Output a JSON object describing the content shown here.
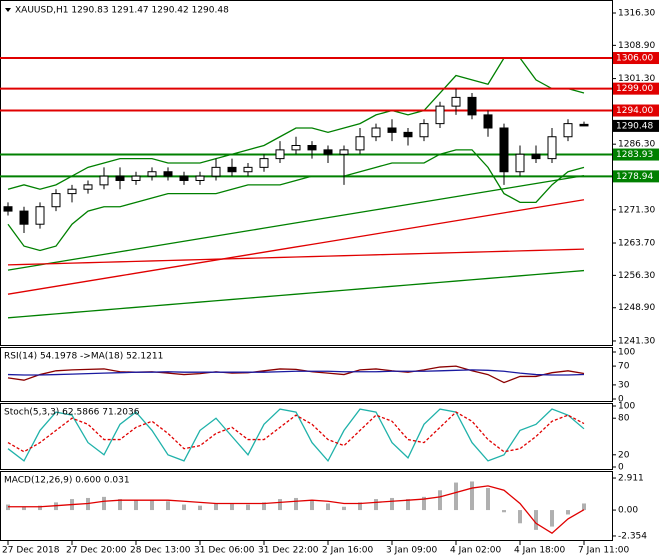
{
  "chart_data": [
    {
      "type": "candlestick",
      "title": "XAUUSD,H1  1290.83 1291.47 1290.42 1290.48",
      "categories": [
        "27 Dec 2018",
        null,
        null,
        null,
        "27 Dec 20:00",
        null,
        null,
        null,
        "28 Dec 13:00",
        null,
        null,
        null,
        "31 Dec 06:00",
        null,
        null,
        null,
        "31 Dec 22:00",
        null,
        null,
        null,
        "2 Jan 16:00",
        null,
        null,
        null,
        "3 Jan 09:00",
        null,
        null,
        null,
        "4 Jan 02:00",
        null,
        null,
        null,
        "4 Jan 18:00",
        null,
        null,
        null,
        "7 Jan 11:00"
      ],
      "open": [
        1272,
        1271,
        1268,
        1272,
        1275,
        1276,
        1277,
        1279,
        1278,
        1279,
        1280,
        1279,
        1278,
        1279,
        1281,
        1280,
        1281,
        1283,
        1285,
        1286,
        1285,
        1284,
        1285,
        1288,
        1290,
        1289,
        1288,
        1291,
        1295,
        1297,
        1293,
        1290,
        1280,
        1284,
        1283,
        1288,
        1290.83
      ],
      "high": [
        1273,
        1272,
        1273,
        1276,
        1277,
        1278,
        1281,
        1281,
        1280,
        1281,
        1281,
        1280,
        1280,
        1283,
        1283,
        1282,
        1284,
        1287,
        1288,
        1287,
        1286,
        1286,
        1290,
        1291,
        1292,
        1290,
        1292,
        1296,
        1299,
        1298,
        1294,
        1291,
        1286,
        1286,
        1290,
        1292,
        1291.47
      ],
      "low": [
        1270,
        1266,
        1267,
        1271,
        1273,
        1275,
        1276,
        1276,
        1277,
        1278,
        1278,
        1277,
        1277,
        1278,
        1279,
        1279,
        1280,
        1282,
        1284,
        1283,
        1282,
        1277,
        1284,
        1287,
        1287,
        1286,
        1287,
        1290,
        1293,
        1292,
        1288,
        1277,
        1279,
        1282,
        1282,
        1287,
        1290.42
      ],
      "close": [
        1271,
        1268,
        1272,
        1275,
        1276,
        1277,
        1279,
        1278,
        1279,
        1280,
        1279,
        1278,
        1279,
        1281,
        1280,
        1281,
        1283,
        1285,
        1286,
        1285,
        1284,
        1285,
        1288,
        1290,
        1289,
        1288,
        1291,
        1295,
        1297,
        1293,
        1290,
        1280,
        1284,
        1283,
        1288,
        1291,
        1290.48
      ],
      "series": [
        {
          "color": "#008000",
          "values": [
            1276,
            1277,
            1276,
            1277,
            1279,
            1281,
            1282,
            1283,
            1283,
            1283,
            1282,
            1282,
            1282,
            1283,
            1284,
            1285,
            1286,
            1288,
            1290,
            1290,
            1289,
            1290,
            1291,
            1293,
            1294,
            1293,
            1294,
            1298,
            1302,
            1301,
            1300,
            1306,
            1306,
            1301,
            1299,
            1299,
            1298
          ]
        },
        {
          "color": "#008000",
          "values": [
            1268,
            1263,
            1262,
            1263,
            1268,
            1271,
            1272,
            1272,
            1273,
            1274,
            1275,
            1275,
            1275,
            1275,
            1276,
            1277,
            1277,
            1277,
            1278,
            1279,
            1279,
            1279,
            1280,
            1281,
            1282,
            1282,
            1282,
            1284,
            1285,
            1285,
            1281,
            1275,
            1273,
            1273,
            1277,
            1280,
            1281
          ]
        },
        {
          "color": "#008000",
          "values": [
            1257.5,
            1258.1,
            1258.7,
            1259.3,
            1259.9,
            1260.5,
            1261.1,
            1261.7,
            1262.3,
            1262.9,
            1263.5,
            1264.1,
            1264.7,
            1265.3,
            1265.9,
            1266.5,
            1267.1,
            1267.7,
            1268.3,
            1268.9,
            1269.5,
            1270.1,
            1270.7,
            1271.3,
            1271.9,
            1272.5,
            1273.1,
            1273.7,
            1274.3,
            1274.9,
            1275.5,
            1276.1,
            1276.7,
            1277.3,
            1277.9,
            1278.5,
            1279.1
          ]
        },
        {
          "color": "#e00000",
          "values": [
            1252.0,
            1252.6,
            1253.2,
            1253.8,
            1254.4,
            1255.0,
            1255.6,
            1256.2,
            1256.8,
            1257.4,
            1258.0,
            1258.6,
            1259.2,
            1259.8,
            1260.4,
            1261.0,
            1261.6,
            1262.2,
            1262.8,
            1263.4,
            1264.0,
            1264.6,
            1265.2,
            1265.8,
            1266.4,
            1267.0,
            1267.6,
            1268.2,
            1268.8,
            1269.4,
            1270.0,
            1270.6,
            1271.2,
            1271.8,
            1272.4,
            1273.0,
            1273.6
          ]
        },
        {
          "color": "#e00000",
          "values": [
            1258.7,
            1258.8,
            1258.9,
            1259.0,
            1259.1,
            1259.2,
            1259.3,
            1259.4,
            1259.5,
            1259.6,
            1259.7,
            1259.8,
            1259.9,
            1260.0,
            1260.1,
            1260.2,
            1260.3,
            1260.4,
            1260.5,
            1260.6,
            1260.7,
            1260.8,
            1260.9,
            1261.0,
            1261.1,
            1261.2,
            1261.3,
            1261.4,
            1261.5,
            1261.6,
            1261.7,
            1261.8,
            1261.9,
            1262.0,
            1262.1,
            1262.2,
            1262.3
          ]
        },
        {
          "color": "#008000",
          "values": [
            1246.6,
            1246.9,
            1247.2,
            1247.5,
            1247.8,
            1248.1,
            1248.4,
            1248.7,
            1249.0,
            1249.3,
            1249.6,
            1249.9,
            1250.2,
            1250.5,
            1250.8,
            1251.1,
            1251.4,
            1251.7,
            1252.0,
            1252.3,
            1252.6,
            1252.9,
            1253.2,
            1253.5,
            1253.8,
            1254.1,
            1254.4,
            1254.7,
            1255.0,
            1255.3,
            1255.6,
            1255.9,
            1256.2,
            1256.5,
            1256.8,
            1257.1,
            1257.4
          ]
        }
      ],
      "levels": [
        {
          "value": 1306,
          "label": "1306.00",
          "color": "#e00000"
        },
        {
          "value": 1299,
          "label": "1299.00",
          "color": "#e00000"
        },
        {
          "value": 1294,
          "label": "1294.00",
          "color": "#e00000"
        },
        {
          "value": 1283.93,
          "label": "1283.93",
          "color": "#008000"
        },
        {
          "value": 1278.94,
          "label": "1278.94",
          "color": "#008000"
        }
      ],
      "last": {
        "value": 1290.48,
        "label": "1290.48"
      },
      "ylim": [
        1240.38,
        1319.27
      ],
      "yticks": [
        {
          "value": 1316.3,
          "label": "1316.30"
        },
        {
          "value": 1308.9,
          "label": "1308.90"
        },
        {
          "value": 1301.3,
          "label": "1301.30"
        },
        {
          "value": 1286.3,
          "label": "1286.30"
        },
        {
          "value": 1271.3,
          "label": "1271.30"
        },
        {
          "value": 1263.7,
          "label": "1263.70"
        },
        {
          "value": 1256.3,
          "label": "1256.30"
        },
        {
          "value": 1248.9,
          "label": "1248.90"
        },
        {
          "value": 1241.3,
          "label": "1241.30"
        }
      ]
    },
    {
      "type": "line",
      "title": "RSI(14) 54.1978  ->MA(18) 52.1211",
      "series": [
        {
          "color": "#8b0000",
          "values": [
            45,
            40,
            52,
            60,
            62,
            63,
            64,
            58,
            57,
            58,
            55,
            52,
            54,
            58,
            55,
            56,
            60,
            64,
            63,
            58,
            55,
            52,
            62,
            64,
            60,
            57,
            62,
            68,
            70,
            60,
            52,
            35,
            48,
            48,
            56,
            60,
            54.2
          ]
        },
        {
          "color": "#1a1aa0",
          "values": [
            52,
            51,
            51,
            52,
            53,
            54,
            55,
            56,
            57,
            57,
            58,
            57,
            57,
            57,
            57,
            57,
            57,
            58,
            59,
            59,
            59,
            58,
            58,
            58,
            59,
            59,
            59,
            60,
            61,
            62,
            61,
            59,
            55,
            52,
            51,
            51,
            52.1
          ]
        }
      ],
      "ylim": [
        0,
        100
      ],
      "yticks": [
        100,
        70,
        30,
        0
      ]
    },
    {
      "type": "line",
      "title": "Stoch(5,3,3) 62.5866 71.2036",
      "series": [
        {
          "color": "#20b2aa",
          "values": [
            30,
            10,
            60,
            90,
            85,
            40,
            20,
            70,
            90,
            60,
            20,
            10,
            60,
            80,
            50,
            20,
            70,
            95,
            90,
            40,
            10,
            60,
            95,
            90,
            40,
            15,
            70,
            95,
            90,
            40,
            10,
            20,
            60,
            70,
            95,
            85,
            62.6
          ]
        },
        {
          "color": "#e00000",
          "dashed": true,
          "values": [
            40,
            25,
            40,
            60,
            80,
            70,
            45,
            45,
            65,
            75,
            55,
            30,
            35,
            55,
            65,
            45,
            45,
            65,
            85,
            70,
            45,
            35,
            60,
            85,
            75,
            45,
            40,
            65,
            90,
            75,
            45,
            25,
            30,
            50,
            75,
            85,
            71.2
          ]
        }
      ],
      "ylim": [
        0,
        100
      ],
      "yticks": [
        100,
        80,
        20,
        0
      ]
    },
    {
      "type": "macd",
      "title": "MACD(12,26,9) 0.600 0.031",
      "series": [
        {
          "color": "#b0b0b0",
          "kind": "bar",
          "values": [
            0.5,
            0.3,
            0.4,
            0.7,
            1.0,
            1.1,
            1.2,
            1.0,
            0.9,
            0.9,
            0.8,
            0.5,
            0.4,
            0.6,
            0.6,
            0.5,
            0.7,
            1.0,
            1.1,
            0.9,
            0.6,
            0.3,
            0.7,
            1.0,
            1.1,
            1.0,
            1.2,
            1.8,
            2.5,
            2.6,
            2.0,
            -0.2,
            -1.2,
            -1.8,
            -1.5,
            -0.4,
            0.6
          ]
        },
        {
          "color": "#e00000",
          "kind": "line",
          "values": [
            0.3,
            0.3,
            0.3,
            0.4,
            0.5,
            0.6,
            0.8,
            0.9,
            0.9,
            0.9,
            0.9,
            0.8,
            0.7,
            0.6,
            0.6,
            0.6,
            0.6,
            0.7,
            0.8,
            0.9,
            0.8,
            0.6,
            0.6,
            0.7,
            0.8,
            0.9,
            1.0,
            1.2,
            1.6,
            2.0,
            2.2,
            1.8,
            0.6,
            -1.2,
            -2.1,
            -0.8,
            0.031
          ]
        }
      ],
      "ylim": [
        -2.72,
        3.46
      ],
      "yticks": [
        2.911,
        {
          "value": 0,
          "label": "0.00"
        },
        -2.354
      ]
    }
  ]
}
